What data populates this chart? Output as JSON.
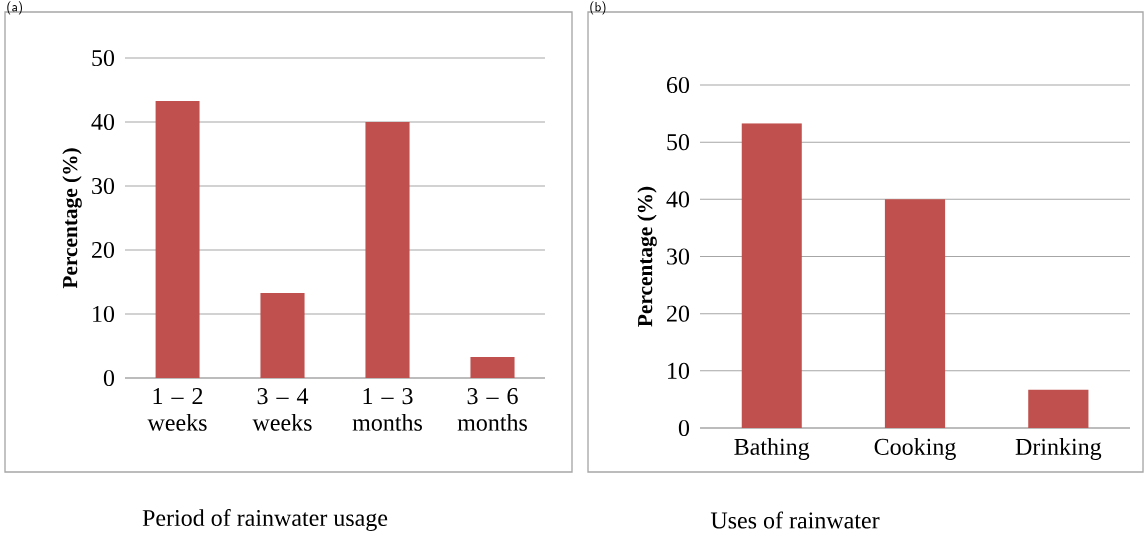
{
  "chart_data": [
    {
      "type": "bar",
      "title": "(a)",
      "xlabel": "Period of rainwater usage",
      "ylabel": "Percentage (%)",
      "categories": [
        "1 – 2 weeks",
        "3 – 4 weeks",
        "1 – 3 months",
        "3 – 6 months"
      ],
      "values": [
        43.3,
        13.3,
        40,
        3.3
      ],
      "color": "#c0504d",
      "ylim": [
        0,
        50
      ],
      "yticks": [
        0,
        10,
        20,
        30,
        40,
        50
      ],
      "grid": "y"
    },
    {
      "type": "bar",
      "title": "(b)",
      "xlabel": "Uses of rainwater",
      "ylabel": "Percentage (%)",
      "categories": [
        "Bathing",
        "Cooking",
        "Drinking"
      ],
      "values": [
        53.3,
        40,
        6.7
      ],
      "color": "#c0504d",
      "ylim": [
        0,
        60
      ],
      "yticks": [
        0,
        10,
        20,
        30,
        40,
        50,
        60
      ],
      "grid": "y"
    }
  ]
}
